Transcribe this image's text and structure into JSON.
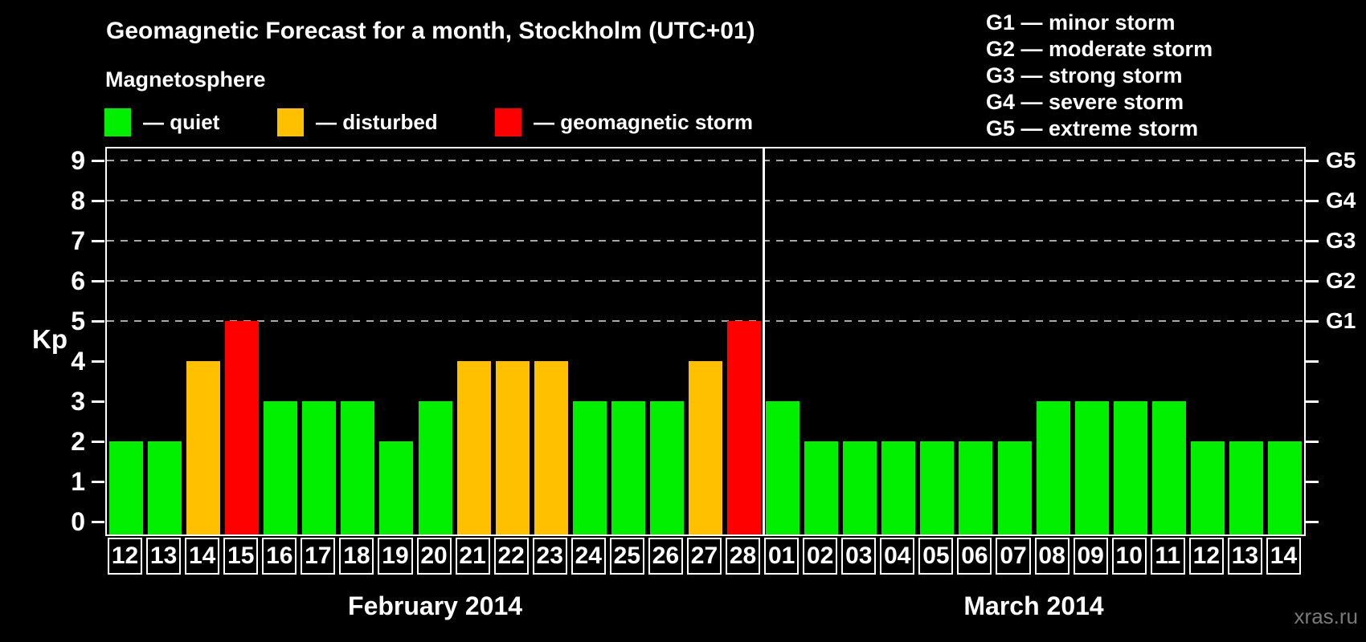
{
  "header": {
    "title": "Geomagnetic Forecast for a month, Stockholm (UTC+01)"
  },
  "storm_scale": [
    "G1 — minor storm",
    "G2 — moderate storm",
    "G3 — strong storm",
    "G4 — severe storm",
    "G5 — extreme storm"
  ],
  "legend": {
    "group_label": "Magnetosphere",
    "items": [
      {
        "label": "— quiet",
        "state": "quiet"
      },
      {
        "label": "— disturbed",
        "state": "disturbed"
      },
      {
        "label": "— geomagnetic storm",
        "state": "storm"
      }
    ]
  },
  "footer": {
    "watermark": "xras.ru"
  },
  "chart_data": {
    "type": "bar",
    "title": "Geomagnetic Forecast for a month, Stockholm (UTC+01)",
    "ylabel": "Kp",
    "xlabel": "",
    "ylim": [
      0,
      9
    ],
    "y_ticks": [
      0,
      1,
      2,
      3,
      4,
      5,
      6,
      7,
      8,
      9
    ],
    "grid": "dashed horizontal lines at Kp 5-9 only",
    "legend_position": "top-left",
    "g_levels": [
      {
        "kp": 5,
        "label": "G1"
      },
      {
        "kp": 6,
        "label": "G2"
      },
      {
        "kp": 7,
        "label": "G3"
      },
      {
        "kp": 8,
        "label": "G4"
      },
      {
        "kp": 9,
        "label": "G5"
      }
    ],
    "colors": {
      "quiet": "#00F000",
      "disturbed": "#FFC000",
      "storm": "#FF0000",
      "axis": "#FFFFFF",
      "gridline": "#A8A8A8",
      "background": "#000000"
    },
    "months": [
      {
        "label": "February 2014",
        "days": [
          {
            "day": "12",
            "kp": 2,
            "state": "quiet"
          },
          {
            "day": "13",
            "kp": 2,
            "state": "quiet"
          },
          {
            "day": "14",
            "kp": 4,
            "state": "disturbed"
          },
          {
            "day": "15",
            "kp": 5,
            "state": "storm"
          },
          {
            "day": "16",
            "kp": 3,
            "state": "quiet"
          },
          {
            "day": "17",
            "kp": 3,
            "state": "quiet"
          },
          {
            "day": "18",
            "kp": 3,
            "state": "quiet"
          },
          {
            "day": "19",
            "kp": 2,
            "state": "quiet"
          },
          {
            "day": "20",
            "kp": 3,
            "state": "quiet"
          },
          {
            "day": "21",
            "kp": 4,
            "state": "disturbed"
          },
          {
            "day": "22",
            "kp": 4,
            "state": "disturbed"
          },
          {
            "day": "23",
            "kp": 4,
            "state": "disturbed"
          },
          {
            "day": "24",
            "kp": 3,
            "state": "quiet"
          },
          {
            "day": "25",
            "kp": 3,
            "state": "quiet"
          },
          {
            "day": "26",
            "kp": 3,
            "state": "quiet"
          },
          {
            "day": "27",
            "kp": 4,
            "state": "disturbed"
          },
          {
            "day": "28",
            "kp": 5,
            "state": "storm"
          }
        ]
      },
      {
        "label": "March 2014",
        "days": [
          {
            "day": "01",
            "kp": 3,
            "state": "quiet"
          },
          {
            "day": "02",
            "kp": 2,
            "state": "quiet"
          },
          {
            "day": "03",
            "kp": 2,
            "state": "quiet"
          },
          {
            "day": "04",
            "kp": 2,
            "state": "quiet"
          },
          {
            "day": "05",
            "kp": 2,
            "state": "quiet"
          },
          {
            "day": "06",
            "kp": 2,
            "state": "quiet"
          },
          {
            "day": "07",
            "kp": 2,
            "state": "quiet"
          },
          {
            "day": "08",
            "kp": 3,
            "state": "quiet"
          },
          {
            "day": "09",
            "kp": 3,
            "state": "quiet"
          },
          {
            "day": "10",
            "kp": 3,
            "state": "quiet"
          },
          {
            "day": "11",
            "kp": 3,
            "state": "quiet"
          },
          {
            "day": "12",
            "kp": 2,
            "state": "quiet"
          },
          {
            "day": "13",
            "kp": 2,
            "state": "quiet"
          },
          {
            "day": "14",
            "kp": 2,
            "state": "quiet"
          }
        ]
      }
    ]
  }
}
